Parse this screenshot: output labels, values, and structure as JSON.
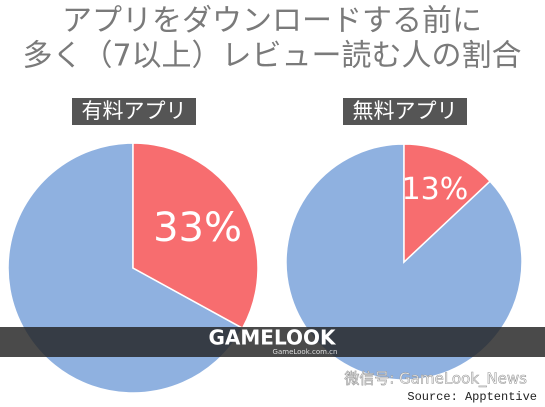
{
  "title_lines": [
    "アプリをダウンロードする前に",
    "多く（7以上）レビュー読む人の割合"
  ],
  "chart_data": [
    {
      "type": "pie",
      "title": "有料アプリ",
      "categories": [
        null,
        null
      ],
      "values": [
        33,
        67
      ],
      "value_labels": [
        "33%",
        null
      ],
      "colors": [
        "#f76d6f",
        "#8fb1e0"
      ]
    },
    {
      "type": "pie",
      "title": "無料アプリ",
      "categories": [
        null,
        null
      ],
      "values": [
        13,
        87
      ],
      "value_labels": [
        "13%",
        null
      ],
      "colors": [
        "#f76d6f",
        "#8fb1e0"
      ]
    }
  ],
  "watermark": {
    "brand": "GAMELOOK",
    "site": "GameLook.com.cn",
    "wechat": "微信号: GameLook_News"
  },
  "source": "Source: Apptentive"
}
